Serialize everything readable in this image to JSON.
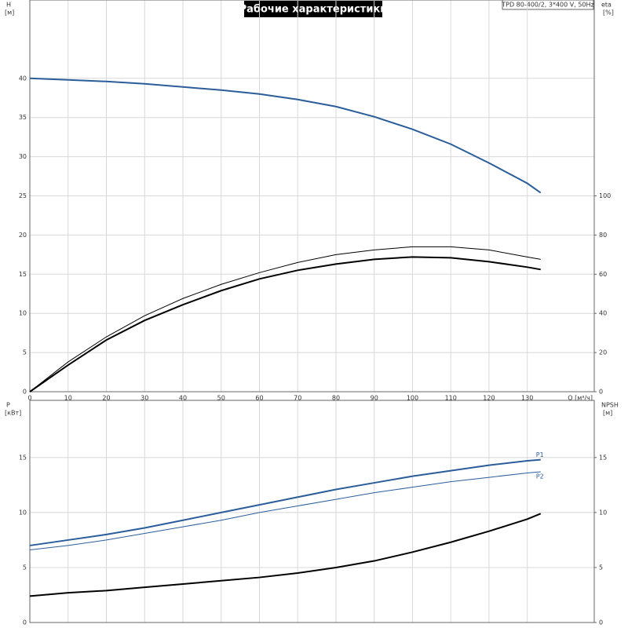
{
  "chart_data": [
    {
      "type": "line",
      "title": "Рабочие характеристики",
      "subtitle": "TPD 80-400/2, 3*400 V, 50Hz",
      "ylabel": "H",
      "yunit": "[м]",
      "y2label": "eta",
      "y2unit": "[%]",
      "xlabel": "Q [м³/ч]",
      "x": [
        0,
        10,
        20,
        30,
        40,
        50,
        60,
        70,
        80,
        90,
        100,
        110,
        120,
        130,
        133.5
      ],
      "xlim": [
        0,
        147.5
      ],
      "xticks": [
        0,
        10,
        20,
        30,
        40,
        50,
        60,
        70,
        80,
        90,
        100,
        110,
        120,
        130
      ],
      "ylim": [
        0,
        50
      ],
      "yticks": [
        0,
        5,
        10,
        15,
        20,
        25,
        30,
        35,
        40
      ],
      "y2lim": [
        0,
        200
      ],
      "y2ticks": [
        0,
        20,
        40,
        60,
        80,
        100
      ],
      "grid": true,
      "series": [
        {
          "color": "#2a5d9a",
          "width": 2,
          "values": [
            40,
            39.8,
            39.6,
            39.3,
            38.9,
            38.5,
            38,
            37.3,
            36.4,
            35.1,
            33.5,
            31.6,
            29.2,
            26.6,
            25.4
          ]
        },
        {
          "color": "#000000",
          "width": 1,
          "axis": "y2",
          "values": [
            0,
            15.2,
            28,
            38.8,
            47.6,
            54.8,
            60.8,
            66,
            70,
            72.4,
            74,
            74,
            72.4,
            68.8,
            67.6
          ]
        },
        {
          "color": "#000000",
          "width": 2,
          "axis": "y2",
          "values": [
            0,
            13.6,
            26.4,
            36.4,
            44.4,
            51.6,
            57.6,
            62,
            65.2,
            67.6,
            68.8,
            68.4,
            66.4,
            63.6,
            62.4
          ]
        }
      ]
    },
    {
      "type": "line",
      "ylabel": "P",
      "yunit": "[кВт]",
      "y2label": "NPSH",
      "y2unit": "[м]",
      "x": [
        0,
        10,
        20,
        30,
        40,
        50,
        60,
        70,
        80,
        90,
        100,
        110,
        120,
        130,
        133.5
      ],
      "xlim": [
        0,
        147.5
      ],
      "xticks": [
        0,
        10,
        20,
        30,
        40,
        50,
        60,
        70,
        80,
        90,
        100,
        110,
        120,
        130
      ],
      "ylim": [
        0,
        20.2
      ],
      "yticks": [
        0,
        5,
        10,
        15
      ],
      "y2lim": [
        0,
        20.2
      ],
      "y2ticks": [
        0,
        5,
        10,
        15
      ],
      "grid": true,
      "series": [
        {
          "name": "P1",
          "color": "#2a5d9a",
          "width": 2,
          "values": [
            7.0,
            7.5,
            8.0,
            8.6,
            9.3,
            10.0,
            10.7,
            11.4,
            12.1,
            12.7,
            13.3,
            13.8,
            14.3,
            14.7,
            14.8
          ]
        },
        {
          "name": "P2",
          "color": "#2a5d9a",
          "width": 1,
          "values": [
            6.6,
            7.0,
            7.5,
            8.1,
            8.7,
            9.3,
            10.0,
            10.6,
            11.2,
            11.8,
            12.3,
            12.8,
            13.2,
            13.6,
            13.7
          ]
        },
        {
          "color": "#000000",
          "width": 2,
          "axis": "y2",
          "values": [
            2.4,
            2.7,
            2.9,
            3.2,
            3.5,
            3.8,
            4.1,
            4.5,
            5.0,
            5.6,
            6.4,
            7.3,
            8.3,
            9.4,
            9.9
          ]
        }
      ]
    }
  ]
}
